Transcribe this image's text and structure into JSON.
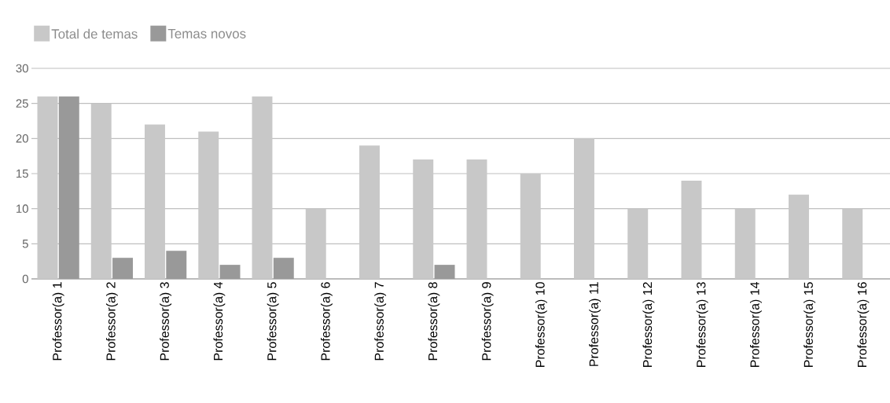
{
  "chart_data": {
    "type": "bar",
    "categories": [
      "Professor(a) 1",
      "Professor(a) 2",
      "Professor(a) 3",
      "Professor(a) 4",
      "Professor(a) 5",
      "Professor(a) 6",
      "Professor(a) 7",
      "Professor(a) 8",
      "Professor(a) 9",
      "Professor(a) 10",
      "Professor(a) 11",
      "Professor(a) 12",
      "Professor(a) 13",
      "Professor(a) 14",
      "Professor(a) 15",
      "Professor(a) 16"
    ],
    "series": [
      {
        "name": "Total de temas",
        "color": "#c8c8c8",
        "values": [
          26,
          25,
          22,
          21,
          26,
          10,
          19,
          17,
          17,
          15,
          20,
          10,
          14,
          10,
          12,
          10
        ]
      },
      {
        "name": "Temas novos",
        "color": "#999999",
        "values": [
          26,
          3,
          4,
          2,
          3,
          0,
          0,
          2,
          0,
          0,
          0,
          0,
          0,
          0,
          0,
          0
        ]
      }
    ],
    "ylim": [
      0,
      30
    ],
    "yticks": [
      0,
      5,
      10,
      15,
      20,
      25,
      30
    ],
    "grid": "y",
    "legend": "top left"
  }
}
